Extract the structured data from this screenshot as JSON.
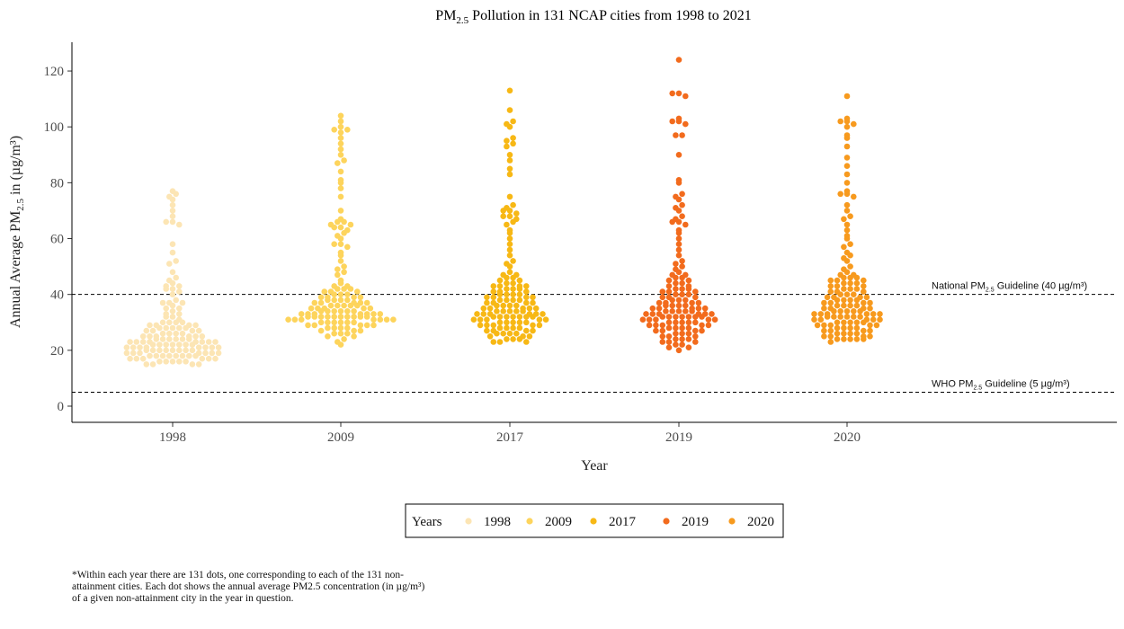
{
  "title_pm": "PM",
  "title_sub": "2.5",
  "title_rest": " Pollution in 131 NCAP cities from 1998 to 2021",
  "footnote": "*Within each year there are 131 dots, one corresponding to each of the 131 non-attainment cities. Each dot shows the annual average PM2.5 concentration (in µg/m³) of a given non-attainment city in the year in question.",
  "chart_data": {
    "type": "scatter",
    "subtype": "beeswarm",
    "xlabel": "Year",
    "ylabel_parts": {
      "pre": "Annual Average PM",
      "sub": "2.5",
      "post": " in (µg/m³)"
    },
    "ylim": [
      -6,
      131
    ],
    "yticks": [
      0,
      20,
      40,
      60,
      80,
      100,
      120
    ],
    "categories": [
      "1998",
      "2009",
      "2017",
      "2019",
      "2020"
    ],
    "legend": {
      "title": "Years",
      "position": "bottom",
      "entries": [
        "1998",
        "2009",
        "2017",
        "2019",
        "2020"
      ]
    },
    "reference_lines": [
      {
        "value": 40,
        "label_pre": "National PM",
        "label_sub": "2.5",
        "label_post": " Guideline (40 µg/m³)"
      },
      {
        "value": 5,
        "label_pre": "WHO PM",
        "label_sub": "2.5",
        "label_post": " Guideline (5 µg/m³)"
      }
    ],
    "series": [
      {
        "name": "1998",
        "color": "#FCE5B4",
        "values": [
          77,
          76,
          75,
          74,
          72,
          70,
          68,
          66,
          66,
          65,
          58,
          55,
          52,
          51,
          48,
          46,
          45,
          44,
          43,
          43,
          42,
          42,
          41,
          40,
          38,
          37,
          37,
          37,
          36,
          35,
          35,
          34,
          33,
          33,
          32,
          32,
          31,
          30,
          30,
          30,
          30,
          29,
          29,
          29,
          29,
          28,
          28,
          28,
          28,
          28,
          27,
          27,
          27,
          27,
          26,
          26,
          26,
          26,
          25,
          25,
          25,
          25,
          25,
          25,
          24,
          24,
          24,
          24,
          24,
          24,
          23,
          23,
          23,
          23,
          23,
          23,
          23,
          23,
          22,
          22,
          22,
          22,
          22,
          22,
          22,
          21,
          21,
          21,
          21,
          21,
          21,
          21,
          21,
          20,
          20,
          20,
          20,
          20,
          20,
          20,
          20,
          19,
          19,
          19,
          19,
          19,
          19,
          19,
          18,
          18,
          18,
          18,
          18,
          18,
          18,
          18,
          17,
          17,
          17,
          17,
          17,
          17,
          16,
          16,
          16,
          16,
          16,
          15,
          15,
          15,
          15
        ]
      },
      {
        "name": "2009",
        "color": "#FDD45C",
        "values": [
          104,
          102,
          100,
          99,
          99,
          98,
          96,
          94,
          92,
          90,
          88,
          87,
          84,
          81,
          80,
          78,
          75,
          70,
          67,
          66,
          66,
          65,
          65,
          64,
          64,
          63,
          62,
          61,
          60,
          58,
          58,
          57,
          55,
          54,
          52,
          50,
          49,
          48,
          47,
          45,
          44,
          43,
          43,
          42,
          42,
          42,
          41,
          41,
          41,
          40,
          40,
          40,
          39,
          39,
          39,
          39,
          38,
          38,
          38,
          38,
          37,
          37,
          37,
          37,
          37,
          36,
          36,
          36,
          36,
          36,
          35,
          35,
          35,
          35,
          35,
          34,
          34,
          34,
          34,
          34,
          34,
          33,
          33,
          33,
          33,
          33,
          33,
          33,
          32,
          32,
          32,
          32,
          32,
          32,
          32,
          32,
          32,
          32,
          31,
          31,
          31,
          31,
          31,
          31,
          31,
          30,
          30,
          30,
          30,
          30,
          30,
          29,
          29,
          29,
          29,
          29,
          28,
          28,
          28,
          28,
          27,
          27,
          27,
          26,
          26,
          26,
          25,
          25,
          24,
          23,
          22
        ]
      },
      {
        "name": "2017",
        "color": "#F7B815",
        "values": [
          113,
          106,
          102,
          101,
          100,
          96,
          95,
          94,
          93,
          90,
          88,
          85,
          83,
          75,
          72,
          71,
          70,
          70,
          69,
          68,
          68,
          67,
          66,
          65,
          63,
          62,
          60,
          58,
          56,
          54,
          52,
          51,
          50,
          48,
          47,
          47,
          46,
          46,
          45,
          45,
          44,
          44,
          43,
          43,
          43,
          43,
          42,
          42,
          42,
          41,
          41,
          41,
          40,
          40,
          40,
          40,
          39,
          39,
          39,
          39,
          38,
          38,
          38,
          38,
          37,
          37,
          37,
          37,
          36,
          36,
          36,
          36,
          35,
          35,
          35,
          35,
          35,
          34,
          34,
          34,
          34,
          34,
          33,
          33,
          33,
          33,
          33,
          33,
          32,
          32,
          32,
          32,
          32,
          32,
          32,
          31,
          31,
          31,
          31,
          31,
          30,
          30,
          30,
          30,
          30,
          29,
          29,
          29,
          29,
          29,
          28,
          28,
          28,
          28,
          27,
          27,
          27,
          27,
          26,
          26,
          26,
          26,
          25,
          25,
          25,
          24,
          24,
          24,
          23,
          23,
          23
        ]
      },
      {
        "name": "2019",
        "color": "#F26B1D",
        "values": [
          124,
          112,
          112,
          111,
          103,
          102,
          102,
          101,
          97,
          97,
          90,
          81,
          80,
          76,
          75,
          74,
          72,
          71,
          70,
          68,
          67,
          66,
          66,
          65,
          63,
          62,
          60,
          58,
          56,
          54,
          52,
          51,
          50,
          49,
          48,
          47,
          47,
          46,
          46,
          45,
          45,
          44,
          44,
          43,
          43,
          42,
          42,
          42,
          41,
          41,
          41,
          40,
          40,
          40,
          39,
          39,
          39,
          38,
          38,
          38,
          37,
          37,
          37,
          37,
          36,
          36,
          36,
          36,
          35,
          35,
          35,
          35,
          35,
          34,
          34,
          34,
          34,
          34,
          33,
          33,
          33,
          33,
          33,
          33,
          32,
          32,
          32,
          32,
          32,
          32,
          32,
          31,
          31,
          31,
          31,
          31,
          30,
          30,
          30,
          30,
          30,
          29,
          29,
          29,
          29,
          29,
          28,
          28,
          28,
          28,
          27,
          27,
          27,
          27,
          26,
          26,
          26,
          25,
          25,
          25,
          24,
          24,
          24,
          23,
          23,
          23,
          22,
          22,
          21,
          21,
          20
        ]
      },
      {
        "name": "2020",
        "color": "#F79A1E",
        "values": [
          111,
          103,
          102,
          102,
          101,
          100,
          97,
          96,
          93,
          89,
          86,
          83,
          80,
          77,
          76,
          76,
          75,
          72,
          70,
          68,
          67,
          65,
          63,
          61,
          60,
          58,
          57,
          55,
          54,
          53,
          52,
          50,
          49,
          48,
          47,
          47,
          46,
          46,
          46,
          45,
          45,
          45,
          44,
          44,
          44,
          43,
          43,
          43,
          42,
          42,
          42,
          41,
          41,
          41,
          40,
          40,
          40,
          39,
          39,
          39,
          39,
          38,
          38,
          38,
          38,
          37,
          37,
          37,
          37,
          36,
          36,
          36,
          36,
          35,
          35,
          35,
          35,
          34,
          34,
          34,
          34,
          34,
          33,
          33,
          33,
          33,
          33,
          33,
          32,
          32,
          32,
          32,
          32,
          32,
          31,
          31,
          31,
          31,
          31,
          30,
          30,
          30,
          30,
          30,
          29,
          29,
          29,
          29,
          29,
          28,
          28,
          28,
          28,
          27,
          27,
          27,
          27,
          26,
          26,
          26,
          26,
          25,
          25,
          25,
          25,
          24,
          24,
          24,
          24,
          24,
          23
        ]
      }
    ]
  }
}
